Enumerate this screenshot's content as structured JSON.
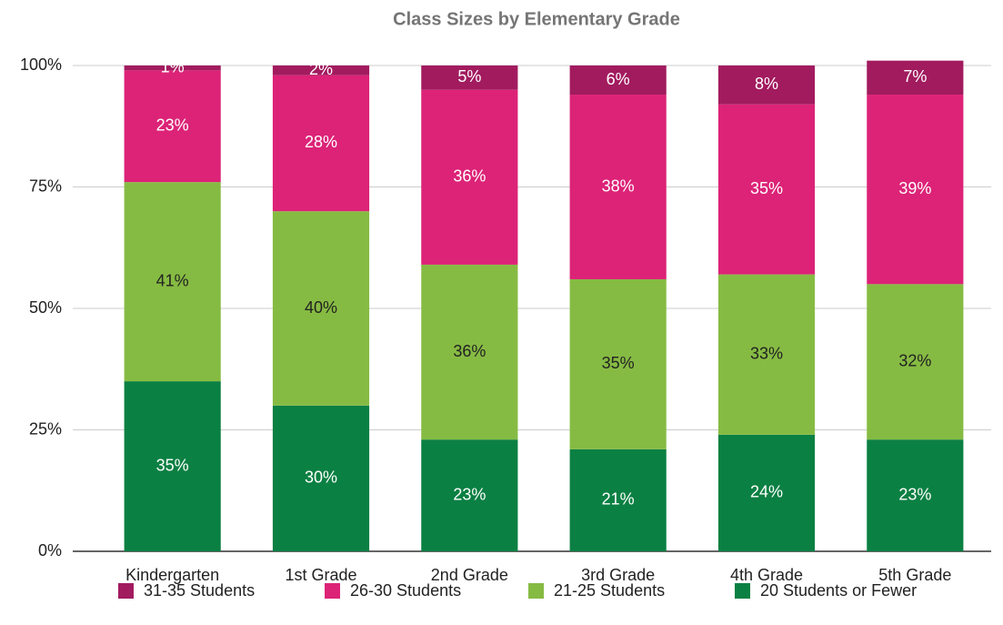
{
  "chart_data": {
    "type": "stacked_bar",
    "title": "Class Sizes by Elementary Grade",
    "categories": [
      "Kindergarten",
      "1st Grade",
      "2nd Grade",
      "3rd Grade",
      "4th Grade",
      "5th Grade"
    ],
    "series": [
      {
        "name": "31-35 Students",
        "color": "#a21b5f",
        "values": [
          1,
          2,
          5,
          6,
          8,
          7
        ],
        "value_labels": [
          "1%",
          "2%",
          "5%",
          "6%",
          "8%",
          "7%"
        ]
      },
      {
        "name": "26-30 Students",
        "color": "#dc2377",
        "values": [
          23,
          28,
          36,
          38,
          35,
          39
        ],
        "value_labels": [
          "23%",
          "28%",
          "36%",
          "38%",
          "35%",
          "39%"
        ]
      },
      {
        "name": "21-25 Students",
        "color": "#86bb43",
        "values": [
          41,
          40,
          36,
          35,
          33,
          32
        ],
        "value_labels": [
          "41%",
          "40%",
          "36%",
          "35%",
          "33%",
          "32%"
        ]
      },
      {
        "name": "20 Students or Fewer",
        "color": "#0b8043",
        "values": [
          35,
          30,
          23,
          21,
          24,
          23
        ],
        "value_labels": [
          "35%",
          "30%",
          "23%",
          "21%",
          "24%",
          "23%"
        ]
      }
    ],
    "ylim": [
      0,
      100
    ],
    "yticks": [
      {
        "value": 0,
        "label": "0%"
      },
      {
        "value": 25,
        "label": "25%"
      },
      {
        "value": 50,
        "label": "50%"
      },
      {
        "value": 75,
        "label": "75%"
      },
      {
        "value": 100,
        "label": "100%"
      }
    ],
    "grid": true,
    "legend": "bottom"
  }
}
